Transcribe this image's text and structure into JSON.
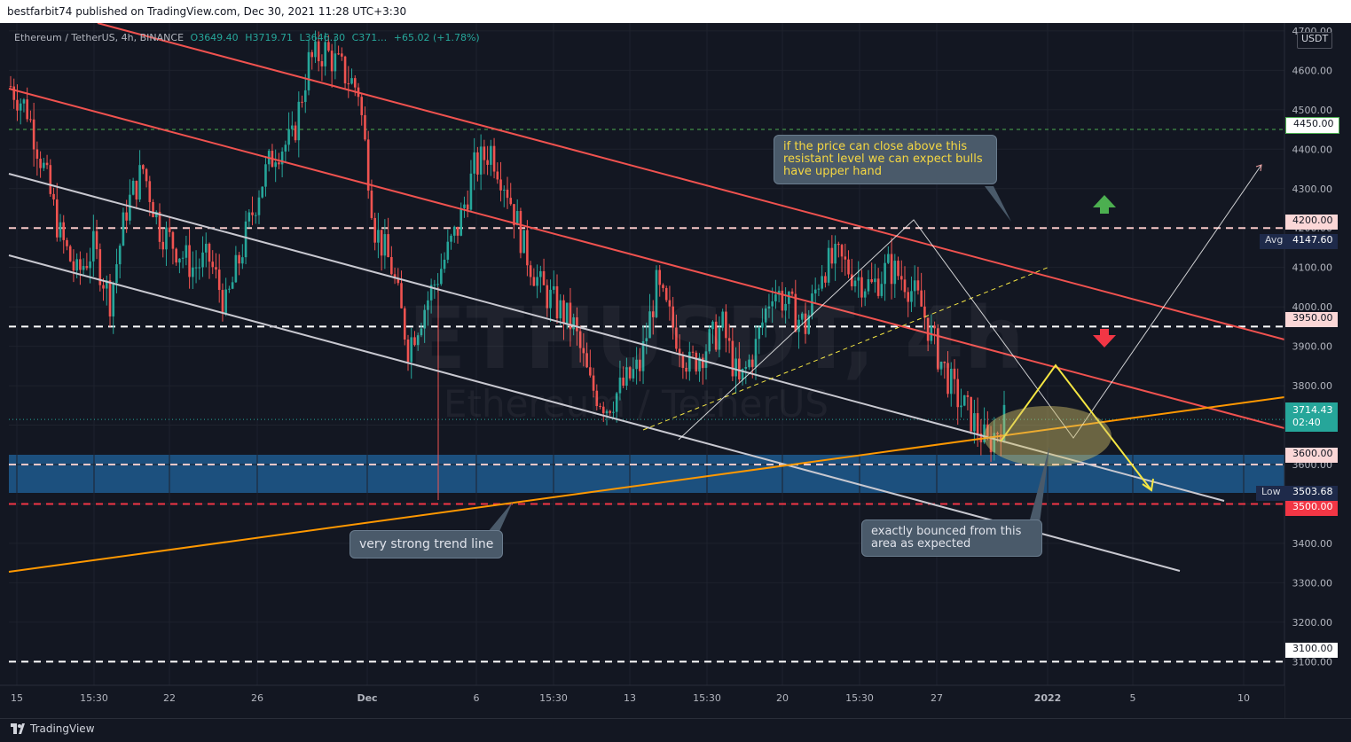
{
  "header": {
    "publisher_line": "bestfarbit74 published on TradingView.com, Dec 30, 2021 11:28 UTC+3:30"
  },
  "symbol": {
    "name": "Ethereum / TetherUS, 4h, BINANCE",
    "open": "O3649.40",
    "high": "H3719.71",
    "low": "L3646.30",
    "close": "C371…",
    "change": "+65.02 (+1.78%)"
  },
  "watermark": {
    "ticker": "ETHUSDT, 4h",
    "name": "Ethereum / TetherUS"
  },
  "price_axis": {
    "currency": "USDT",
    "ticks": [
      "4700.00",
      "4600.00",
      "4500.00",
      "4400.00",
      "4300.00",
      "4200.00",
      "4100.00",
      "4000.00",
      "3900.00",
      "3800.00",
      "3700.00",
      "3600.00",
      "3500.00",
      "3400.00",
      "3300.00",
      "3200.00",
      "3100.00"
    ],
    "current_price": "3714.43",
    "countdown": "02:40",
    "avg_label": "Avg",
    "avg_value": "4147.60",
    "low_label": "Low",
    "low_value": "3503.68",
    "levels": [
      {
        "value": "4450.00",
        "color": "#4caf50"
      },
      {
        "value": "4200.00",
        "color": "#f8c8c8"
      },
      {
        "value": "3950.00",
        "color": "#ffffff"
      },
      {
        "value": "3600.00",
        "color": "#f8c8c8"
      },
      {
        "value": "3500.00",
        "color": "#f23645"
      },
      {
        "value": "3100.00",
        "color": "#ffffff"
      }
    ]
  },
  "time_axis": {
    "ticks": [
      "15",
      "15:30",
      "22",
      "26",
      "Dec",
      "6",
      "15:30",
      "13",
      "15:30",
      "20",
      "15:30",
      "27",
      "2022",
      "5",
      "10"
    ]
  },
  "annotations": {
    "resistance_note": "if the price can close above this resistant level we can expect bulls have upper hand",
    "trend_note": "very strong trend line",
    "bounce_note": "exactly bounced from this area as expected"
  },
  "footer": {
    "brand": "TradingView"
  },
  "colors": {
    "background": "#131722",
    "bull_candle": "#26a69a",
    "bear_candle": "#ef5350",
    "channel_red": "#f0524f",
    "channel_white": "#c8c8d0",
    "trend_orange": "#ff9800",
    "zone_blue": "#1e5a8e",
    "projection_yellow": "#f5e642",
    "up_arrow": "#4caf50",
    "down_arrow": "#f23645"
  },
  "chart_data": {
    "type": "candlestick",
    "title": "Ethereum / TetherUS, 4h, BINANCE",
    "ylim": [
      3040,
      4720
    ],
    "y_axis_unit": "USDT",
    "x_ticks": [
      "15",
      "15:30",
      "22",
      "26",
      "Dec",
      "6",
      "15:30",
      "13",
      "15:30",
      "20",
      "15:30",
      "27",
      "2022",
      "5",
      "10"
    ],
    "approx_close_path": [
      4560,
      4500,
      4350,
      4180,
      4080,
      4150,
      4020,
      4250,
      4350,
      4200,
      4150,
      4100,
      4120,
      4000,
      4150,
      4300,
      4400,
      4420,
      4620,
      4650,
      4600,
      4550,
      4200,
      4100,
      3900,
      4000,
      4100,
      4200,
      4350,
      4400,
      4300,
      4150,
      4050,
      4000,
      3950,
      3800,
      3750,
      3800,
      3850,
      4050,
      3950,
      3850,
      3900,
      3950,
      3800,
      3900,
      4050,
      4000,
      3950,
      4100,
      4120,
      4080,
      4050,
      4100,
      4070,
      4000,
      3880,
      3780,
      3720,
      3650,
      3714.43
    ],
    "horizontal_levels": [
      4450,
      4200,
      3950,
      3600,
      3500,
      3100
    ],
    "support_zone": [
      3500,
      3600
    ],
    "last_price": 3714.43,
    "average": 4147.6,
    "low": 3503.68
  }
}
